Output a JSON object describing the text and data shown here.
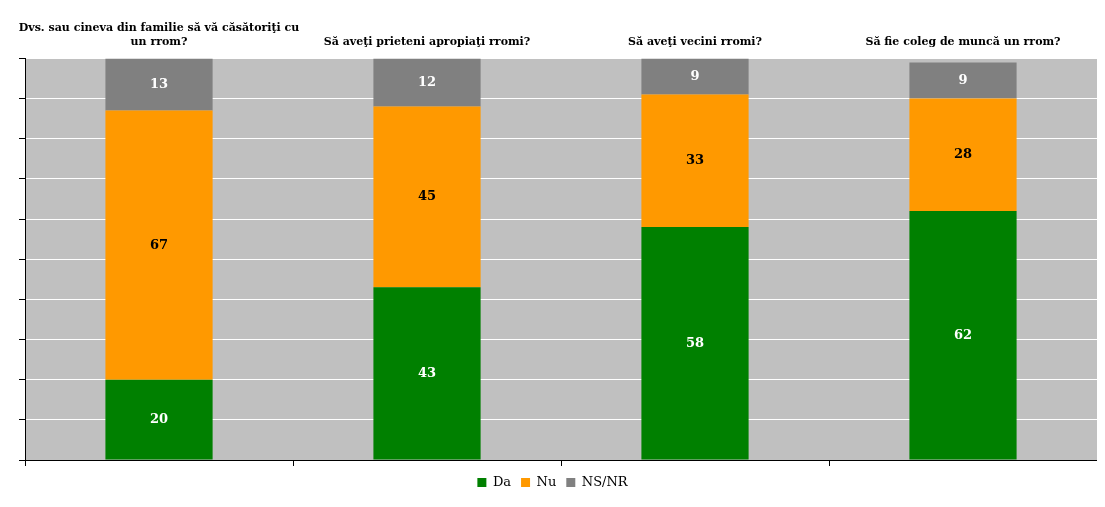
{
  "chart_data": {
    "type": "bar",
    "stacked": true,
    "categories": [
      "Dvs. sau cineva din familie să vă căsătoriţi cu un rrom?",
      "Să aveţi prieteni apropiaţi rromi?",
      "Să aveţi vecini rromi?",
      "Să fie coleg de muncă un rrom?"
    ],
    "series": [
      {
        "name": "Da",
        "color": "#008000",
        "values": [
          20,
          43,
          58,
          62
        ]
      },
      {
        "name": "Nu",
        "color": "#ff9900",
        "values": [
          67,
          45,
          33,
          28
        ]
      },
      {
        "name": "NS/NR",
        "color": "#808080",
        "values": [
          13,
          12,
          9,
          9
        ]
      }
    ],
    "ylim": [
      0,
      100
    ],
    "yticks": [
      {
        "value": 0,
        "label": null
      },
      {
        "value": 10,
        "label": null
      },
      {
        "value": 20,
        "label": null
      },
      {
        "value": 30,
        "label": null
      },
      {
        "value": 40,
        "label": null
      },
      {
        "value": 50,
        "label": null
      },
      {
        "value": 60,
        "label": null
      },
      {
        "value": 70,
        "label": null
      },
      {
        "value": 80,
        "label": null
      },
      {
        "value": 90,
        "label": null
      },
      {
        "value": 100,
        "label": null
      }
    ],
    "grid": "y",
    "legend": "bottom",
    "data_labels": true,
    "tick_labels": "x"
  }
}
